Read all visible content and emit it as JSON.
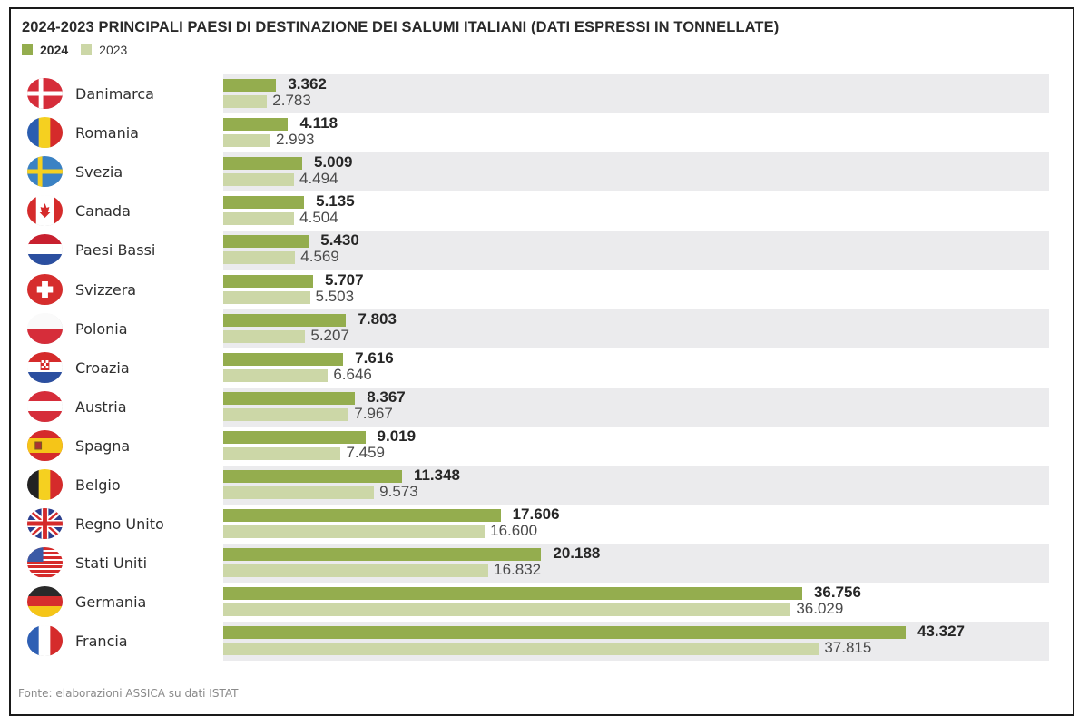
{
  "colors": {
    "bar_2024": "#94ad4e",
    "bar_2023": "#ccd7a7",
    "band": "#ebebed"
  },
  "chart_data": {
    "type": "bar",
    "orientation": "horizontal",
    "title": "2024-2023 PRINCIPALI PAESI DI DESTINAZIONE DEI SALUMI ITALIANI (DATI ESPRESSI IN TONNELLATE)",
    "xlabel": "",
    "ylabel": "",
    "unit": "tonnellate",
    "legend": {
      "placement": "top-left",
      "entries": [
        {
          "label": "2024",
          "color": "#94ad4e"
        },
        {
          "label": "2023",
          "color": "#ccd7a7"
        }
      ]
    },
    "grid": false,
    "xlim": [
      0,
      43327
    ],
    "categories": [
      "Danimarca",
      "Romania",
      "Svezia",
      "Canada",
      "Paesi Bassi",
      "Svizzera",
      "Polonia",
      "Croazia",
      "Austria",
      "Spagna",
      "Belgio",
      "Regno Unito",
      "Stati Uniti",
      "Germania",
      "Francia"
    ],
    "flag_icons": [
      "flag-denmark-icon",
      "flag-romania-icon",
      "flag-sweden-icon",
      "flag-canada-icon",
      "flag-netherlands-icon",
      "flag-switzerland-icon",
      "flag-poland-icon",
      "flag-croatia-icon",
      "flag-austria-icon",
      "flag-spain-icon",
      "flag-belgium-icon",
      "flag-uk-icon",
      "flag-usa-icon",
      "flag-germany-icon",
      "flag-france-icon"
    ],
    "series": [
      {
        "name": "2024",
        "values": [
          3362,
          4118,
          5009,
          5135,
          5430,
          5707,
          7803,
          7616,
          8367,
          9019,
          11348,
          17606,
          20188,
          36756,
          43327
        ],
        "labels": [
          "3.362",
          "4.118",
          "5.009",
          "5.135",
          "5.430",
          "5.707",
          "7.803",
          "7.616",
          "8.367",
          "9.019",
          "11.348",
          "17.606",
          "20.188",
          "36.756",
          "43.327"
        ]
      },
      {
        "name": "2023",
        "values": [
          2783,
          2993,
          4494,
          4504,
          4569,
          5503,
          5207,
          6646,
          7967,
          7459,
          9573,
          16600,
          16832,
          36029,
          37815
        ],
        "labels": [
          "2.783",
          "2.993",
          "4.494",
          "4.504",
          "4.569",
          "5.503",
          "5.207",
          "6.646",
          "7.967",
          "7.459",
          "9.573",
          "16.600",
          "16.832",
          "36.029",
          "37.815"
        ]
      }
    ],
    "source": "Fonte: elaborazioni ASSICA su dati ISTAT"
  }
}
